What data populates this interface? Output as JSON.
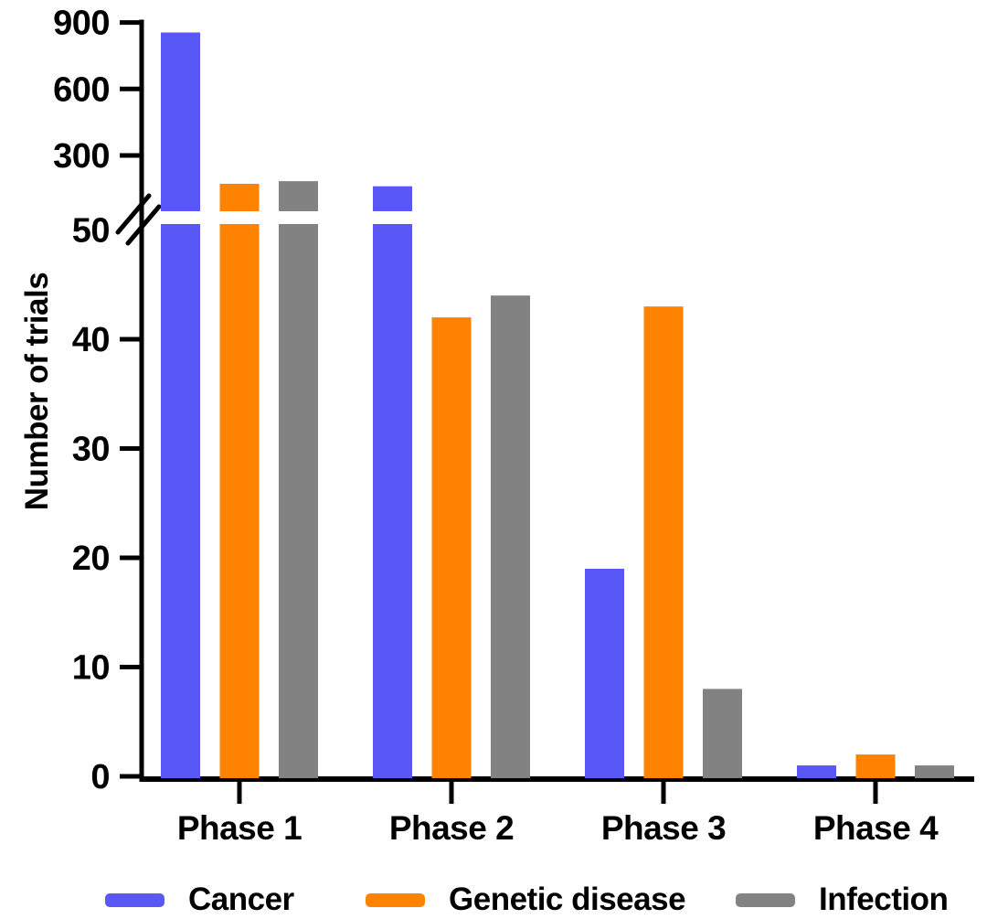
{
  "chart_data": {
    "type": "bar",
    "title": "",
    "xlabel": "",
    "ylabel": "Number of trials",
    "categories": [
      "Phase 1",
      "Phase 2",
      "Phase 3",
      "Phase 4"
    ],
    "series": [
      {
        "name": "Cancer",
        "color": "#5A57F7",
        "values": [
          855,
          161,
          19,
          1
        ]
      },
      {
        "name": "Genetic disease",
        "color": "#FF8300",
        "values": [
          172,
          42,
          43,
          2
        ]
      },
      {
        "name": "Infection",
        "color": "#828282",
        "values": [
          184,
          44,
          8,
          1
        ]
      }
    ],
    "axis_break": {
      "break_label": "50",
      "lower_range": [
        0,
        50
      ],
      "lower_ticks": [
        0,
        10,
        20,
        30,
        40
      ],
      "upper_range": [
        300,
        900
      ],
      "upper_ticks": [
        300,
        600,
        900
      ]
    },
    "grid": false,
    "legend_position": "bottom",
    "axis_color": "#000000",
    "background_color": "#FFFFFF"
  }
}
